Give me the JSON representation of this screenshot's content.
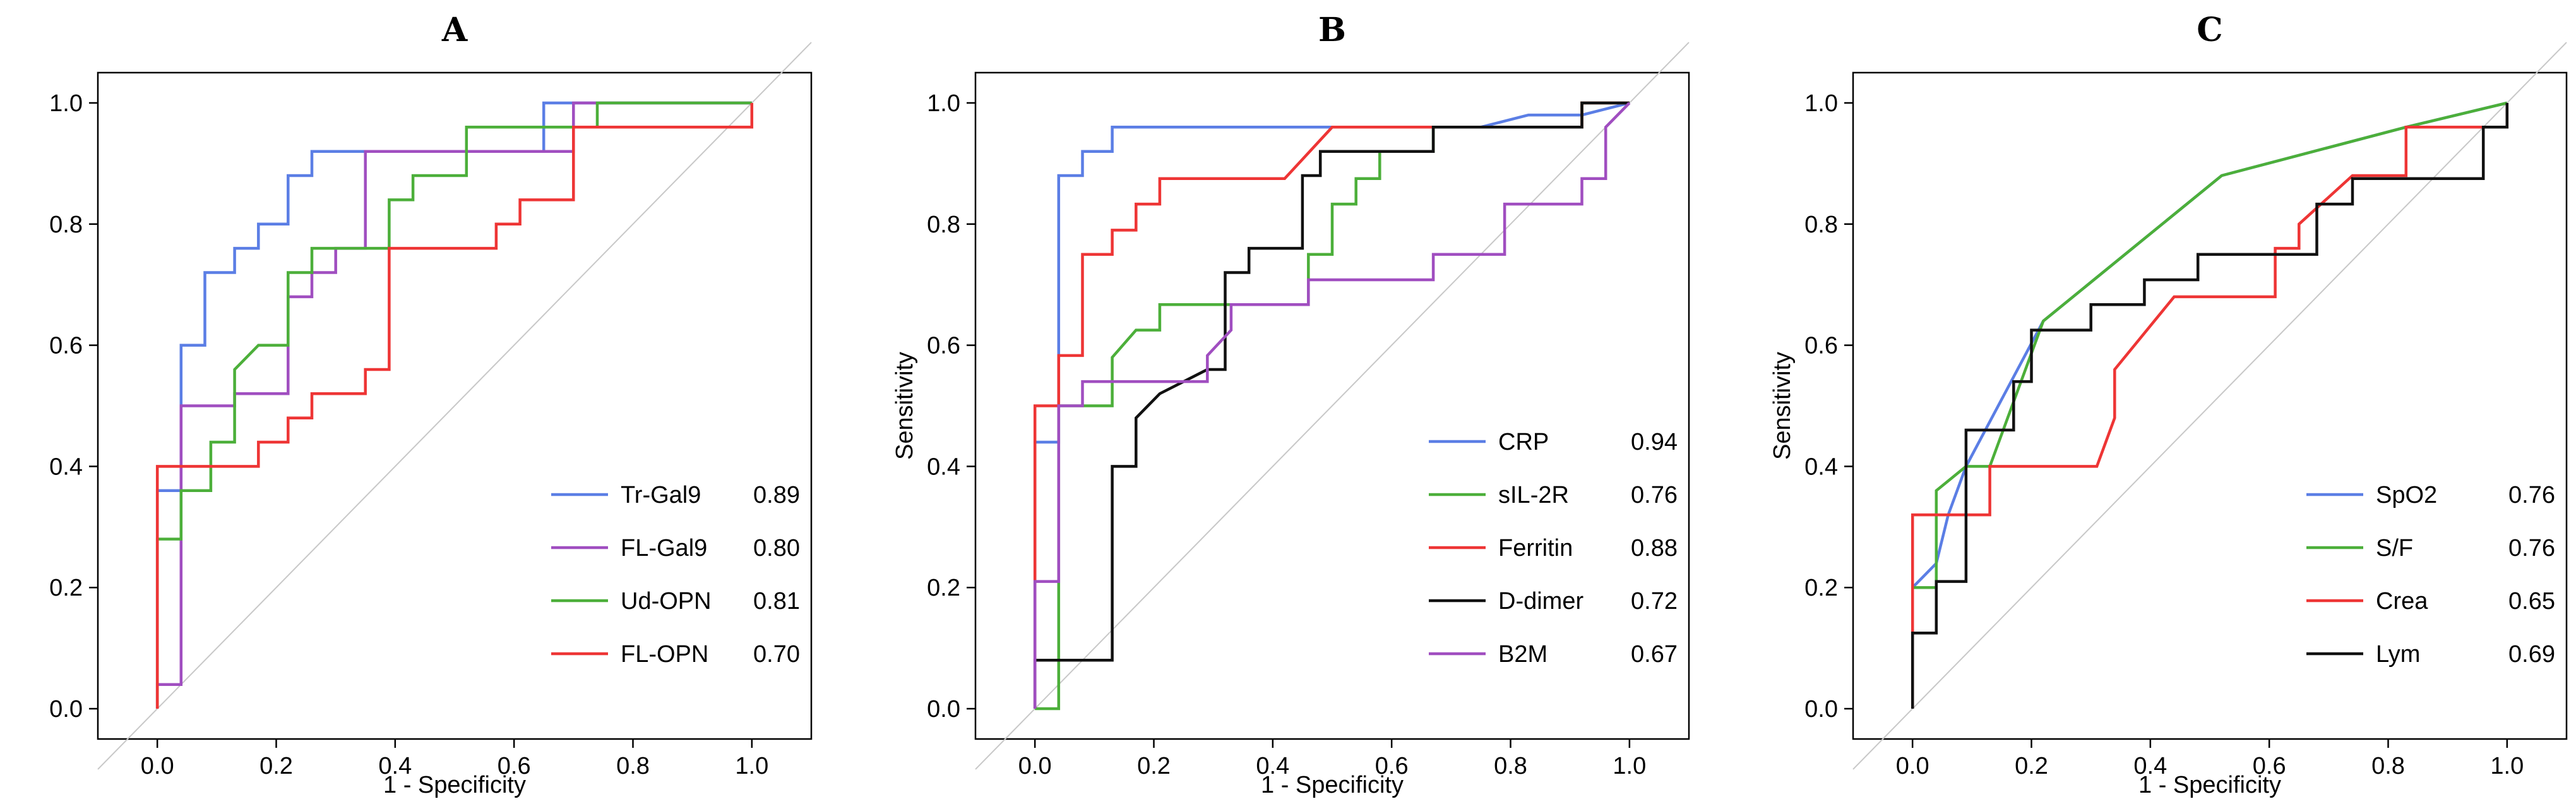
{
  "chart_data": [
    {
      "panel": "A",
      "type": "line",
      "title": "A",
      "xlabel": "1 - Specificity",
      "ylabel": "",
      "xlim": [
        -0.1,
        1.1
      ],
      "ylim": [
        -0.05,
        1.05
      ],
      "xticks": [
        "0.0",
        "0.2",
        "0.4",
        "0.6",
        "0.8",
        "1.0"
      ],
      "yticks": [
        "0.0",
        "0.2",
        "0.4",
        "0.6",
        "0.8",
        "1.0"
      ],
      "diagonal": true,
      "legend_position": "bottom-right",
      "series": [
        {
          "name": "Tr-Gal9",
          "auc": "0.89",
          "color": "#5b7ee5",
          "points": [
            [
              0,
              0
            ],
            [
              0,
              0.36
            ],
            [
              0.04,
              0.36
            ],
            [
              0.04,
              0.6
            ],
            [
              0.08,
              0.6
            ],
            [
              0.08,
              0.72
            ],
            [
              0.13,
              0.72
            ],
            [
              0.13,
              0.76
            ],
            [
              0.17,
              0.76
            ],
            [
              0.17,
              0.8
            ],
            [
              0.22,
              0.8
            ],
            [
              0.22,
              0.88
            ],
            [
              0.26,
              0.88
            ],
            [
              0.26,
              0.92
            ],
            [
              0.65,
              0.92
            ],
            [
              0.65,
              1.0
            ],
            [
              1.0,
              1.0
            ]
          ]
        },
        {
          "name": "FL-Gal9",
          "auc": "0.80",
          "color": "#a04ec0",
          "points": [
            [
              0,
              0
            ],
            [
              0,
              0.04
            ],
            [
              0.04,
              0.04
            ],
            [
              0.04,
              0.5
            ],
            [
              0.13,
              0.5
            ],
            [
              0.13,
              0.52
            ],
            [
              0.22,
              0.52
            ],
            [
              0.22,
              0.68
            ],
            [
              0.26,
              0.68
            ],
            [
              0.26,
              0.72
            ],
            [
              0.3,
              0.72
            ],
            [
              0.3,
              0.76
            ],
            [
              0.35,
              0.76
            ],
            [
              0.35,
              0.92
            ],
            [
              0.7,
              0.92
            ],
            [
              0.7,
              1.0
            ],
            [
              1.0,
              1.0
            ]
          ]
        },
        {
          "name": "Ud-OPN",
          "auc": "0.81",
          "color": "#4caf3a",
          "points": [
            [
              0,
              0
            ],
            [
              0,
              0.28
            ],
            [
              0.04,
              0.28
            ],
            [
              0.04,
              0.36
            ],
            [
              0.09,
              0.36
            ],
            [
              0.09,
              0.44
            ],
            [
              0.13,
              0.44
            ],
            [
              0.13,
              0.56
            ],
            [
              0.17,
              0.6
            ],
            [
              0.22,
              0.6
            ],
            [
              0.22,
              0.72
            ],
            [
              0.26,
              0.72
            ],
            [
              0.26,
              0.76
            ],
            [
              0.39,
              0.76
            ],
            [
              0.39,
              0.84
            ],
            [
              0.43,
              0.84
            ],
            [
              0.43,
              0.88
            ],
            [
              0.52,
              0.88
            ],
            [
              0.52,
              0.96
            ],
            [
              0.74,
              0.96
            ],
            [
              0.74,
              1.0
            ],
            [
              1.0,
              1.0
            ]
          ]
        },
        {
          "name": "FL-OPN",
          "auc": "0.70",
          "color": "#ee3535",
          "points": [
            [
              0,
              0
            ],
            [
              0,
              0.4
            ],
            [
              0.17,
              0.4
            ],
            [
              0.17,
              0.44
            ],
            [
              0.22,
              0.44
            ],
            [
              0.22,
              0.48
            ],
            [
              0.26,
              0.48
            ],
            [
              0.26,
              0.52
            ],
            [
              0.35,
              0.52
            ],
            [
              0.35,
              0.56
            ],
            [
              0.39,
              0.56
            ],
            [
              0.39,
              0.76
            ],
            [
              0.57,
              0.76
            ],
            [
              0.57,
              0.8
            ],
            [
              0.61,
              0.8
            ],
            [
              0.61,
              0.84
            ],
            [
              0.7,
              0.84
            ],
            [
              0.7,
              0.96
            ],
            [
              0.87,
              0.96
            ],
            [
              0.87,
              0.96
            ],
            [
              1.0,
              0.96
            ],
            [
              1.0,
              1.0
            ]
          ]
        }
      ]
    },
    {
      "panel": "B",
      "type": "line",
      "title": "B",
      "xlabel": "1 - Specificity",
      "ylabel": "Sensitivity",
      "xlim": [
        -0.1,
        1.1
      ],
      "ylim": [
        -0.05,
        1.05
      ],
      "xticks": [
        "0.0",
        "0.2",
        "0.4",
        "0.6",
        "0.8",
        "1.0"
      ],
      "yticks": [
        "0.0",
        "0.2",
        "0.4",
        "0.6",
        "0.8",
        "1.0"
      ],
      "diagonal": true,
      "legend_position": "bottom-right",
      "series": [
        {
          "name": "CRP",
          "auc": "0.94",
          "color": "#5b7ee5",
          "points": [
            [
              0,
              0
            ],
            [
              0,
              0.44
            ],
            [
              0.04,
              0.44
            ],
            [
              0.04,
              0.88
            ],
            [
              0.08,
              0.88
            ],
            [
              0.08,
              0.92
            ],
            [
              0.13,
              0.92
            ],
            [
              0.13,
              0.96
            ],
            [
              0.75,
              0.96
            ],
            [
              0.83,
              0.98
            ],
            [
              0.92,
              0.98
            ],
            [
              1.0,
              1.0
            ]
          ]
        },
        {
          "name": "sIL-2R",
          "auc": "0.76",
          "color": "#4caf3a",
          "points": [
            [
              0,
              0
            ],
            [
              0,
              0
            ],
            [
              0.04,
              0
            ],
            [
              0.04,
              0.5
            ],
            [
              0.13,
              0.5
            ],
            [
              0.13,
              0.58
            ],
            [
              0.17,
              0.625
            ],
            [
              0.21,
              0.625
            ],
            [
              0.21,
              0.667
            ],
            [
              0.33,
              0.667
            ],
            [
              0.33,
              0.667
            ],
            [
              0.46,
              0.667
            ],
            [
              0.46,
              0.75
            ],
            [
              0.5,
              0.75
            ],
            [
              0.5,
              0.833
            ],
            [
              0.54,
              0.833
            ],
            [
              0.54,
              0.875
            ],
            [
              0.58,
              0.875
            ],
            [
              0.58,
              0.92
            ],
            [
              0.67,
              0.92
            ],
            [
              0.67,
              0.96
            ],
            [
              0.92,
              0.96
            ],
            [
              0.92,
              1.0
            ],
            [
              1.0,
              1.0
            ]
          ]
        },
        {
          "name": "Ferritin",
          "auc": "0.88",
          "color": "#ee3535",
          "points": [
            [
              0,
              0
            ],
            [
              0,
              0.5
            ],
            [
              0.04,
              0.5
            ],
            [
              0.04,
              0.583
            ],
            [
              0.08,
              0.583
            ],
            [
              0.08,
              0.75
            ],
            [
              0.13,
              0.75
            ],
            [
              0.13,
              0.79
            ],
            [
              0.17,
              0.79
            ],
            [
              0.17,
              0.833
            ],
            [
              0.21,
              0.833
            ],
            [
              0.21,
              0.875
            ],
            [
              0.42,
              0.875
            ],
            [
              0.5,
              0.96
            ],
            [
              0.71,
              0.96
            ],
            [
              0.92,
              0.96
            ],
            [
              0.92,
              1.0
            ],
            [
              1.0,
              1.0
            ]
          ]
        },
        {
          "name": "D-dimer",
          "auc": "0.72",
          "color": "#111111",
          "points": [
            [
              0,
              0
            ],
            [
              0,
              0.08
            ],
            [
              0.13,
              0.08
            ],
            [
              0.13,
              0.4
            ],
            [
              0.17,
              0.4
            ],
            [
              0.17,
              0.48
            ],
            [
              0.21,
              0.52
            ],
            [
              0.29,
              0.56
            ],
            [
              0.29,
              0.56
            ],
            [
              0.32,
              0.56
            ],
            [
              0.32,
              0.72
            ],
            [
              0.36,
              0.72
            ],
            [
              0.36,
              0.76
            ],
            [
              0.45,
              0.76
            ],
            [
              0.45,
              0.88
            ],
            [
              0.48,
              0.88
            ],
            [
              0.48,
              0.92
            ],
            [
              0.67,
              0.92
            ],
            [
              0.67,
              0.96
            ],
            [
              0.92,
              0.96
            ],
            [
              0.92,
              1.0
            ],
            [
              1.0,
              1.0
            ]
          ]
        },
        {
          "name": "B2M",
          "auc": "0.67",
          "color": "#a04ec0",
          "points": [
            [
              0,
              0
            ],
            [
              0,
              0.21
            ],
            [
              0.04,
              0.21
            ],
            [
              0.04,
              0.5
            ],
            [
              0.08,
              0.5
            ],
            [
              0.08,
              0.54
            ],
            [
              0.29,
              0.54
            ],
            [
              0.29,
              0.583
            ],
            [
              0.33,
              0.625
            ],
            [
              0.33,
              0.667
            ],
            [
              0.46,
              0.667
            ],
            [
              0.46,
              0.708
            ],
            [
              0.67,
              0.708
            ],
            [
              0.67,
              0.75
            ],
            [
              0.79,
              0.75
            ],
            [
              0.79,
              0.833
            ],
            [
              0.92,
              0.833
            ],
            [
              0.92,
              0.875
            ],
            [
              0.96,
              0.875
            ],
            [
              0.96,
              0.96
            ],
            [
              1.0,
              1.0
            ]
          ]
        }
      ]
    },
    {
      "panel": "C",
      "type": "line",
      "title": "C",
      "xlabel": "1 - Specificity",
      "ylabel": "Sensitivity",
      "xlim": [
        -0.1,
        1.1
      ],
      "ylim": [
        -0.05,
        1.05
      ],
      "xticks": [
        "0.0",
        "0.2",
        "0.4",
        "0.6",
        "0.8",
        "1.0"
      ],
      "yticks": [
        "0.0",
        "0.2",
        "0.4",
        "0.6",
        "0.8",
        "1.0"
      ],
      "diagonal": true,
      "legend_position": "bottom-right",
      "series": [
        {
          "name": "SpO2",
          "auc": "0.76",
          "color": "#5b7ee5",
          "points": [
            [
              0,
              0.2
            ],
            [
              0.04,
              0.24
            ],
            [
              0.06,
              0.32
            ],
            [
              0.09,
              0.4
            ],
            [
              0.22,
              0.64
            ],
            [
              0.52,
              0.88
            ],
            [
              0.83,
              0.96
            ],
            [
              1.0,
              1.0
            ]
          ]
        },
        {
          "name": "S/F",
          "auc": "0.76",
          "color": "#4caf3a",
          "points": [
            [
              0,
              0.2
            ],
            [
              0.04,
              0.2
            ],
            [
              0.04,
              0.36
            ],
            [
              0.09,
              0.4
            ],
            [
              0.13,
              0.4
            ],
            [
              0.22,
              0.64
            ],
            [
              0.52,
              0.88
            ],
            [
              0.83,
              0.96
            ],
            [
              1.0,
              1.0
            ]
          ]
        },
        {
          "name": "Crea",
          "auc": "0.65",
          "color": "#ee3535",
          "points": [
            [
              0,
              0
            ],
            [
              0,
              0.32
            ],
            [
              0.13,
              0.32
            ],
            [
              0.13,
              0.4
            ],
            [
              0.31,
              0.4
            ],
            [
              0.34,
              0.48
            ],
            [
              0.34,
              0.56
            ],
            [
              0.44,
              0.68
            ],
            [
              0.61,
              0.68
            ],
            [
              0.61,
              0.76
            ],
            [
              0.65,
              0.76
            ],
            [
              0.65,
              0.8
            ],
            [
              0.74,
              0.88
            ],
            [
              0.83,
              0.88
            ],
            [
              0.83,
              0.96
            ],
            [
              1.0,
              0.96
            ],
            [
              1.0,
              1.0
            ]
          ]
        },
        {
          "name": "Lym",
          "auc": "0.69",
          "color": "#111111",
          "points": [
            [
              0,
              0
            ],
            [
              0,
              0.125
            ],
            [
              0.04,
              0.125
            ],
            [
              0.04,
              0.21
            ],
            [
              0.09,
              0.21
            ],
            [
              0.09,
              0.46
            ],
            [
              0.17,
              0.46
            ],
            [
              0.17,
              0.54
            ],
            [
              0.2,
              0.54
            ],
            [
              0.2,
              0.625
            ],
            [
              0.3,
              0.625
            ],
            [
              0.3,
              0.667
            ],
            [
              0.39,
              0.667
            ],
            [
              0.39,
              0.708
            ],
            [
              0.48,
              0.708
            ],
            [
              0.48,
              0.75
            ],
            [
              0.68,
              0.75
            ],
            [
              0.68,
              0.833
            ],
            [
              0.74,
              0.833
            ],
            [
              0.74,
              0.875
            ],
            [
              0.96,
              0.875
            ],
            [
              0.96,
              0.96
            ],
            [
              1.0,
              0.96
            ],
            [
              1.0,
              1.0
            ]
          ]
        }
      ]
    }
  ]
}
